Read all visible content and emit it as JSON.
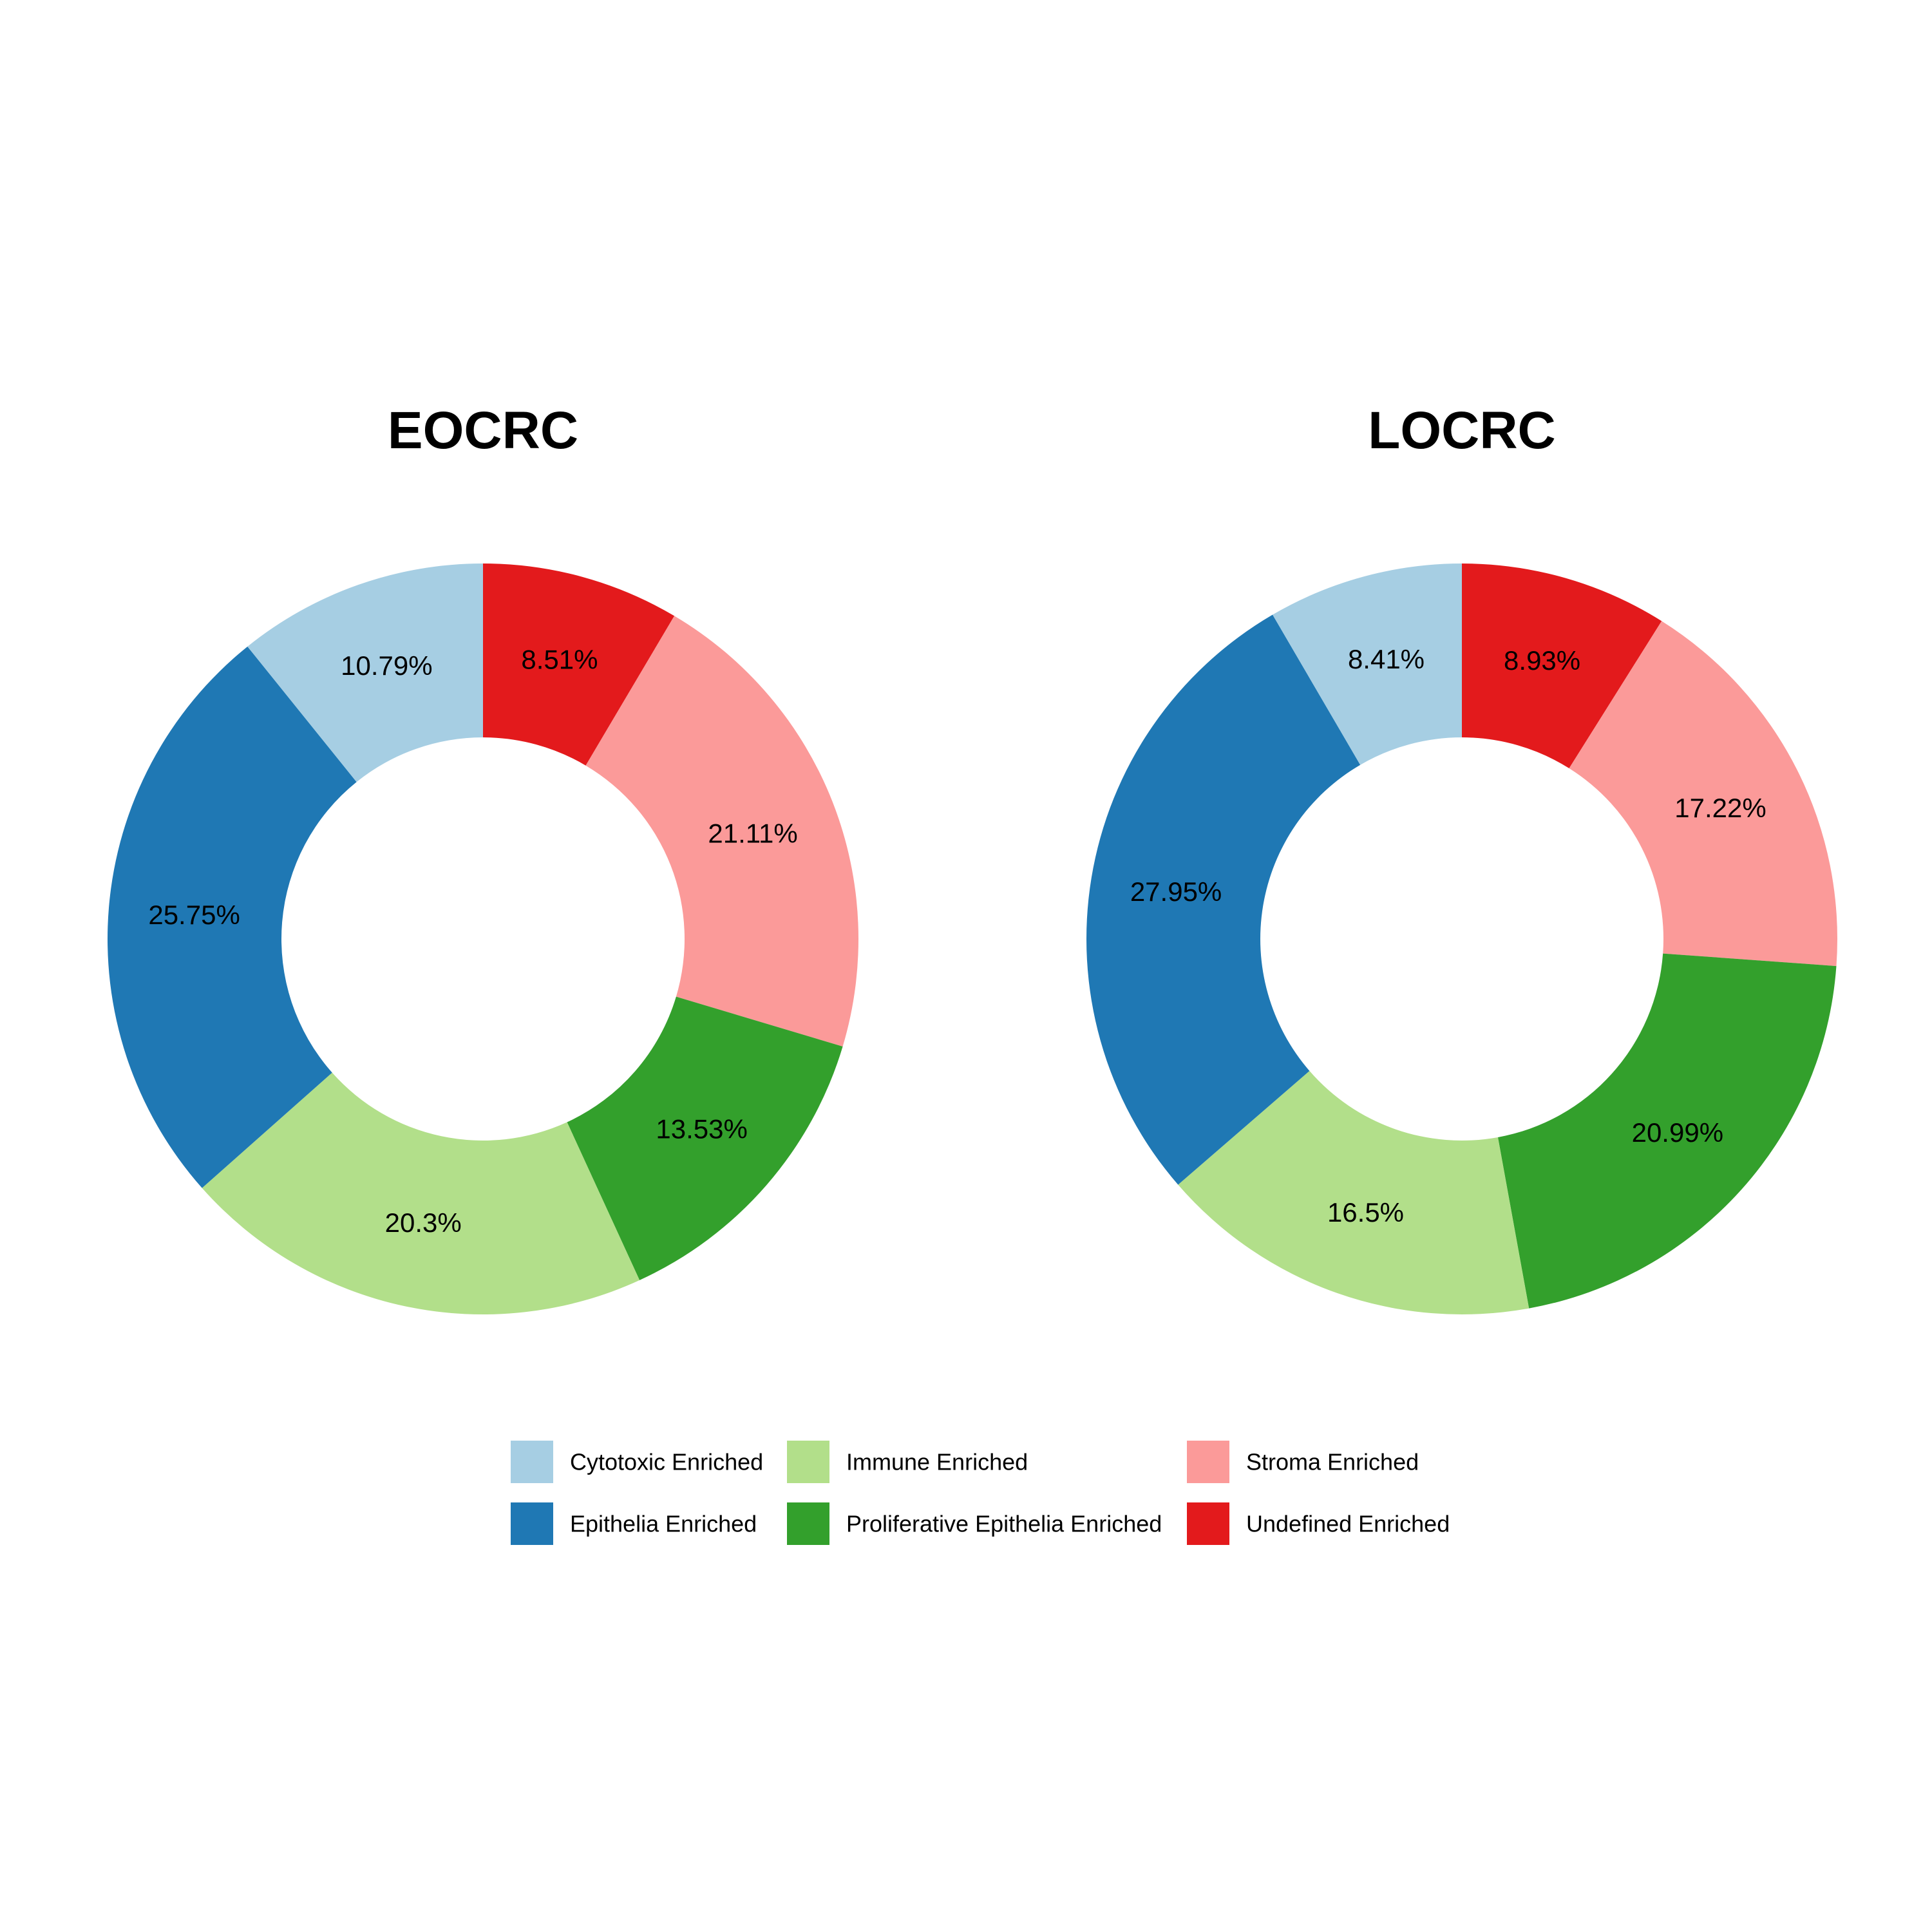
{
  "chart_data": [
    {
      "type": "pie",
      "variant": "donut",
      "title": "EOCRC",
      "slices": [
        {
          "category": "Undefined Enriched",
          "value": 8.51,
          "label": "8.51%"
        },
        {
          "category": "Stroma Enriched",
          "value": 21.11,
          "label": "21.11%"
        },
        {
          "category": "Proliferative Epithelia Enriched",
          "value": 13.53,
          "label": "13.53%"
        },
        {
          "category": "Immune Enriched",
          "value": 20.3,
          "label": "20.3%"
        },
        {
          "category": "Epithelia Enriched",
          "value": 25.75,
          "label": "25.75%"
        },
        {
          "category": "Cytotoxic Enriched",
          "value": 10.79,
          "label": "10.79%"
        }
      ]
    },
    {
      "type": "pie",
      "variant": "donut",
      "title": "LOCRC",
      "slices": [
        {
          "category": "Undefined Enriched",
          "value": 8.93,
          "label": "8.93%"
        },
        {
          "category": "Stroma Enriched",
          "value": 17.22,
          "label": "17.22%"
        },
        {
          "category": "Proliferative Epithelia Enriched",
          "value": 20.99,
          "label": "20.99%"
        },
        {
          "category": "Immune Enriched",
          "value": 16.5,
          "label": "16.5%"
        },
        {
          "category": "Epithelia Enriched",
          "value": 27.95,
          "label": "27.95%"
        },
        {
          "category": "Cytotoxic Enriched",
          "value": 8.41,
          "label": "8.41%"
        }
      ]
    }
  ],
  "legend": {
    "placement": "bottom",
    "entries": [
      {
        "name": "Cytotoxic Enriched",
        "color": "#a6cee3"
      },
      {
        "name": "Epithelia Enriched",
        "color": "#1f78b4"
      },
      {
        "name": "Immune Enriched",
        "color": "#b2df8a"
      },
      {
        "name": "Proliferative Epithelia Enriched",
        "color": "#33a02c"
      },
      {
        "name": "Stroma Enriched",
        "color": "#fb9a99"
      },
      {
        "name": "Undefined Enriched",
        "color": "#e31a1c"
      }
    ]
  }
}
